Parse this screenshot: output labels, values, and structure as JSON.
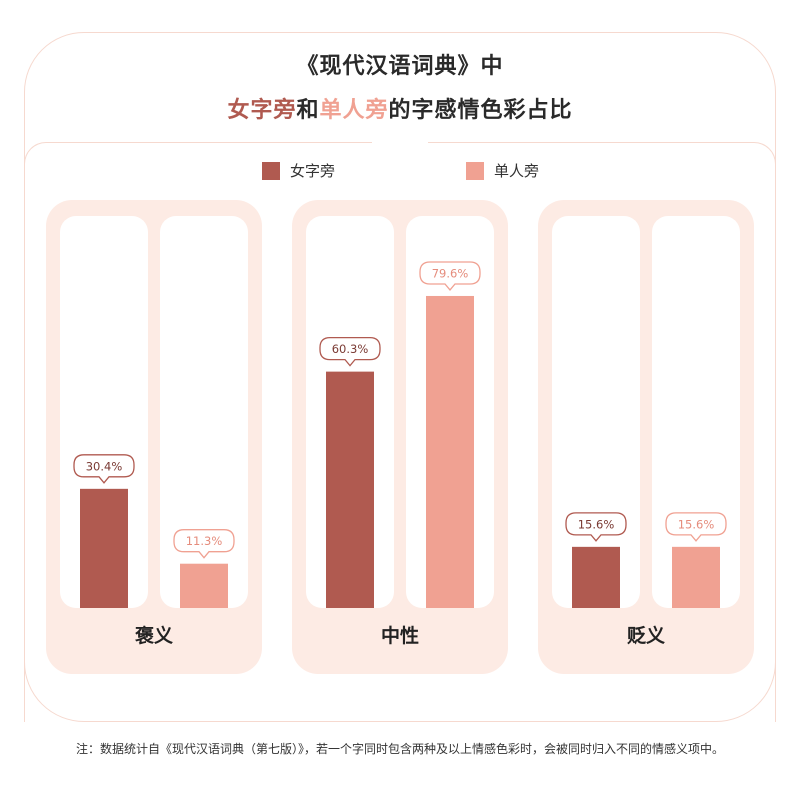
{
  "title": {
    "line1": "《现代汉语词典》中",
    "line2_part1": "女字旁",
    "line2_part2": "和",
    "line2_part3": "单人旁",
    "line2_part4": "的字感情色彩占比"
  },
  "colors": {
    "dark": "#b05a50",
    "light": "#f0a192",
    "group_bg": "#fdebe4",
    "slot_bg": "#ffffff",
    "frame": "#f6d9cf"
  },
  "legend": {
    "items": [
      {
        "name": "女字旁",
        "color": "#b05a50"
      },
      {
        "name": "单人旁",
        "color": "#f0a192"
      }
    ]
  },
  "chart_data": {
    "type": "bar",
    "categories": [
      "褒义",
      "中性",
      "贬义"
    ],
    "series": [
      {
        "name": "女字旁",
        "values": [
          30.4,
          60.3,
          15.6
        ]
      },
      {
        "name": "单人旁",
        "values": [
          11.3,
          79.6,
          15.6
        ]
      }
    ],
    "data_labels": [
      [
        "30.4%",
        "60.3%",
        "15.6%"
      ],
      [
        "11.3%",
        "79.6%",
        "15.6%"
      ]
    ],
    "ylim": [
      0,
      100
    ],
    "grid": false,
    "legend_position": "top-center"
  },
  "footnote": "注：数据统计自《现代汉语词典（第七版）》，若一个字同时包含两种及以上情感色彩时，会被同时归入不同的情感义项中。"
}
